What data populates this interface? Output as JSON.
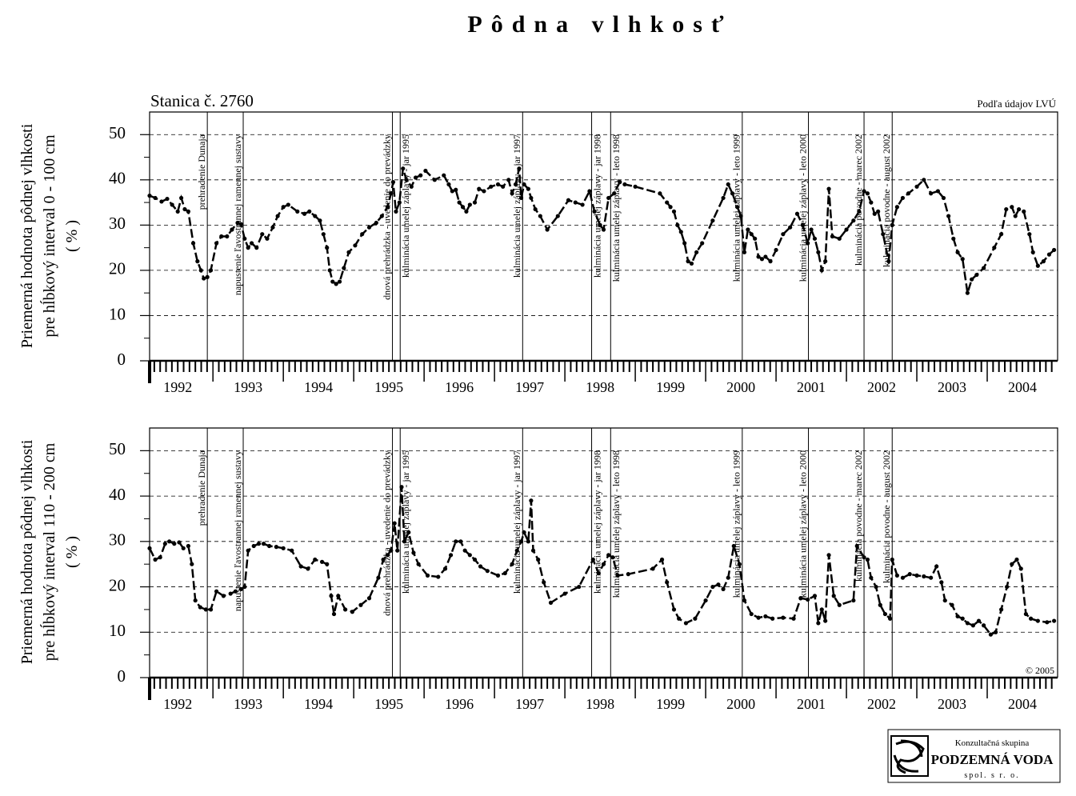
{
  "title": "Pôdna vlhkosť",
  "station": "Stanica č. 2760",
  "source": "Podľa údajov LVÚ",
  "copyright": "© 2005",
  "logo": {
    "line1": "Konzultačná skupina",
    "line2": "PODZEMNÁ VODA",
    "line3": "spol. s r. o."
  },
  "chart_data": [
    {
      "type": "line",
      "ylabel": [
        "Priemerná hodnota pôdnej vlhkosti",
        "pre hĺbkový interval 0 - 100 cm",
        "( % )"
      ],
      "xlim": [
        1992.1,
        2005
      ],
      "xticks": [
        1992,
        1993,
        1994,
        1995,
        1996,
        1997,
        1998,
        1999,
        2000,
        2001,
        2002,
        2003,
        2004
      ],
      "ylim": [
        0,
        55
      ],
      "yticks": [
        0,
        10,
        20,
        30,
        40,
        50
      ],
      "grid": true,
      "events": [
        {
          "x": 1992.92,
          "label": "prehradenie Dunaja"
        },
        {
          "x": 1993.43,
          "label": "napustenie ľavostrannej ramennej sustavy"
        },
        {
          "x": 1995.55,
          "label": "dnová prehrádzka - uvedenie do prevádzky"
        },
        {
          "x": 1995.66,
          "label": "kulminácia umelej záplavy - jar 1995"
        },
        {
          "x": 1997.4,
          "label": "kulminácia umelej záplavy - jar 1997"
        },
        {
          "x": 1998.38,
          "label": "kulminácia umelej záplavy - jar 1998"
        },
        {
          "x": 1998.65,
          "label": "kulminácia umelej záplavy - leto 1998"
        },
        {
          "x": 2000.52,
          "label": "kulminácia umelej záplavy - leto 1999"
        },
        {
          "x": 2001.46,
          "label": "kulminácia umelej záplavy - leto 2000"
        },
        {
          "x": 2002.25,
          "label": "kulminácia povodne - marec 2002"
        },
        {
          "x": 2002.65,
          "label": "kulminácia povodne - august 2002"
        }
      ],
      "series": [
        {
          "color": "#000000",
          "x": [
            1992.1,
            1992.18,
            1992.27,
            1992.35,
            1992.42,
            1992.5,
            1992.55,
            1992.6,
            1992.65,
            1992.72,
            1992.78,
            1992.83,
            1992.87,
            1992.92,
            1992.97,
            1993.05,
            1993.12,
            1993.2,
            1993.27,
            1993.35,
            1993.4,
            1993.45,
            1993.5,
            1993.55,
            1993.62,
            1993.7,
            1993.77,
            1993.85,
            1993.92,
            1994.0,
            1994.07,
            1994.2,
            1994.3,
            1994.37,
            1994.45,
            1994.52,
            1994.57,
            1994.62,
            1994.66,
            1994.7,
            1994.75,
            1994.8,
            1994.86,
            1994.93,
            1995.02,
            1995.12,
            1995.22,
            1995.32,
            1995.4,
            1995.48,
            1995.53,
            1995.56,
            1995.6,
            1995.65,
            1995.7,
            1995.75,
            1995.82,
            1995.88,
            1995.95,
            1996.02,
            1996.15,
            1996.28,
            1996.35,
            1996.4,
            1996.45,
            1996.5,
            1996.55,
            1996.6,
            1996.65,
            1996.72,
            1996.78,
            1996.85,
            1996.95,
            1997.05,
            1997.12,
            1997.2,
            1997.25,
            1997.3,
            1997.35,
            1997.38,
            1997.42,
            1997.48,
            1997.52,
            1997.58,
            1997.65,
            1997.75,
            1997.9,
            1998.05,
            1998.15,
            1998.25,
            1998.35,
            1998.42,
            1998.5,
            1998.55,
            1998.62,
            1998.7,
            1998.78,
            1998.85,
            1999.0,
            1999.35,
            1999.45,
            1999.5,
            1999.55,
            1999.6,
            1999.65,
            1999.7,
            1999.75,
            1999.8,
            1999.87,
            1999.95,
            2000.1,
            2000.25,
            2000.32,
            2000.38,
            2000.45,
            2000.5,
            2000.55,
            2000.6,
            2000.65,
            2000.7,
            2000.75,
            2000.8,
            2000.85,
            2000.92,
            2001.0,
            2001.1,
            2001.2,
            2001.3,
            2001.38,
            2001.45,
            2001.5,
            2001.55,
            2001.6,
            2001.65,
            2001.7,
            2001.75,
            2001.8,
            2001.9,
            2002.0,
            2002.1,
            2002.18,
            2002.25,
            2002.3,
            2002.35,
            2002.4,
            2002.45,
            2002.52,
            2002.6,
            2002.65,
            2002.72,
            2002.8,
            2002.88,
            2003.0,
            2003.1,
            2003.2,
            2003.3,
            2003.38,
            2003.45,
            2003.52,
            2003.58,
            2003.65,
            2003.72,
            2003.78,
            2003.85,
            2003.95,
            2004.1,
            2004.2,
            2004.27,
            2004.35,
            2004.4,
            2004.45,
            2004.52,
            2004.6,
            2004.65,
            2004.72,
            2004.8,
            2004.88,
            2004.95
          ],
          "values": [
            36.5,
            36,
            35.2,
            35.8,
            34.5,
            33,
            36,
            33.5,
            33,
            26,
            22,
            20,
            18.2,
            18.5,
            20,
            26,
            27.5,
            27.5,
            29,
            30.5,
            30.2,
            27,
            25,
            26,
            25,
            28,
            27,
            29.5,
            32,
            34,
            34.5,
            33,
            32.5,
            33,
            32,
            31,
            28,
            25,
            20,
            17.5,
            17,
            17.5,
            20.5,
            24,
            25.5,
            28,
            29.5,
            30.5,
            32,
            34,
            37,
            39.5,
            33,
            35,
            42.5,
            40,
            38.5,
            40.5,
            41,
            42,
            40,
            41,
            39,
            37.5,
            37.8,
            35,
            34,
            33,
            34.5,
            35,
            38,
            37.5,
            38.5,
            39,
            38.5,
            40,
            37,
            39,
            42.5,
            36,
            39,
            38,
            36,
            33.5,
            32,
            29,
            32,
            35.5,
            35,
            34.5,
            37.5,
            33,
            30,
            29,
            36,
            37,
            39.5,
            39,
            38.5,
            37,
            35,
            34,
            33,
            30,
            28.5,
            26,
            22,
            21.5,
            24,
            26,
            31,
            36,
            39,
            37,
            34,
            32,
            24,
            29,
            28,
            27,
            23,
            22.5,
            23,
            22,
            24.5,
            28,
            29.5,
            32.5,
            30,
            26,
            29,
            27,
            24,
            20,
            22,
            38,
            27.5,
            27,
            29,
            31,
            33,
            37.5,
            37,
            35,
            32.5,
            33,
            28,
            22,
            30,
            34,
            36,
            37,
            38.5,
            40,
            37,
            37.5,
            36,
            32,
            27,
            24,
            22.5,
            15,
            18,
            19,
            20.5,
            25,
            28,
            33.5,
            34,
            32,
            33.5,
            33,
            28,
            24,
            21,
            22,
            23.5,
            24.5
          ]
        }
      ]
    },
    {
      "type": "line",
      "ylabel": [
        "Priemerná hodnota pôdnej vlhkosti",
        "pre hĺbkový interval 110 - 200 cm",
        "( % )"
      ],
      "xlim": [
        1992.1,
        2005
      ],
      "xticks": [
        1992,
        1993,
        1994,
        1995,
        1996,
        1997,
        1998,
        1999,
        2000,
        2001,
        2002,
        2003,
        2004
      ],
      "ylim": [
        0,
        55
      ],
      "yticks": [
        0,
        10,
        20,
        30,
        40,
        50
      ],
      "grid": true,
      "events": [
        {
          "x": 1992.92,
          "label": "prehradenie Dunaja"
        },
        {
          "x": 1993.43,
          "label": "napustenie ľavostrannej ramennej sustavy"
        },
        {
          "x": 1995.55,
          "label": "dnová prehrádzka - uvedenie do prevádzky"
        },
        {
          "x": 1995.66,
          "label": "kulminácia umelej záplavy - jar 1995"
        },
        {
          "x": 1997.4,
          "label": "kulminácia umelej záplavy - jar 1997"
        },
        {
          "x": 1998.38,
          "label": "kulminácia umelej záplavy - jar 1998"
        },
        {
          "x": 1998.65,
          "label": "kulminácia umelej záplavy - leto 1998"
        },
        {
          "x": 2000.52,
          "label": "kulminácia umelej záplavy - leto 1999"
        },
        {
          "x": 2001.46,
          "label": "kulminácia umelej záplavy - leto 2000"
        },
        {
          "x": 2002.25,
          "label": "kulminácia povodne - marec 2002"
        },
        {
          "x": 2002.65,
          "label": "kulminácia povodne - august 2002"
        }
      ],
      "series": [
        {
          "color": "#000000",
          "x": [
            1992.1,
            1992.18,
            1992.25,
            1992.32,
            1992.38,
            1992.45,
            1992.52,
            1992.58,
            1992.65,
            1992.7,
            1992.75,
            1992.82,
            1992.9,
            1992.97,
            1993.05,
            1993.15,
            1993.25,
            1993.32,
            1993.4,
            1993.45,
            1993.5,
            1993.58,
            1993.65,
            1993.72,
            1993.8,
            1993.9,
            1994.0,
            1994.12,
            1994.25,
            1994.35,
            1994.45,
            1994.55,
            1994.62,
            1994.68,
            1994.72,
            1994.78,
            1994.88,
            1994.98,
            1995.1,
            1995.22,
            1995.35,
            1995.42,
            1995.48,
            1995.53,
            1995.58,
            1995.62,
            1995.68,
            1995.72,
            1995.78,
            1995.85,
            1995.92,
            1996.05,
            1996.2,
            1996.3,
            1996.38,
            1996.45,
            1996.52,
            1996.58,
            1996.65,
            1996.72,
            1996.8,
            1996.9,
            1997.05,
            1997.15,
            1997.25,
            1997.32,
            1997.38,
            1997.42,
            1997.48,
            1997.52,
            1997.55,
            1997.62,
            1997.7,
            1997.8,
            1998.0,
            1998.2,
            1998.4,
            1998.48,
            1998.55,
            1998.62,
            1998.68,
            1998.75,
            1998.9,
            1999.25,
            1999.38,
            1999.45,
            1999.55,
            1999.62,
            1999.72,
            1999.85,
            2000.0,
            2000.1,
            2000.18,
            2000.25,
            2000.32,
            2000.4,
            2000.48,
            2000.55,
            2000.65,
            2000.75,
            2000.85,
            2000.95,
            2001.1,
            2001.25,
            2001.35,
            2001.45,
            2001.55,
            2001.6,
            2001.65,
            2001.7,
            2001.75,
            2001.82,
            2001.9,
            2002.1,
            2002.15,
            2002.25,
            2002.3,
            2002.35,
            2002.42,
            2002.48,
            2002.55,
            2002.62,
            2002.65,
            2002.72,
            2002.8,
            2002.9,
            2003.0,
            2003.1,
            2003.2,
            2003.28,
            2003.35,
            2003.4,
            2003.5,
            2003.58,
            2003.65,
            2003.72,
            2003.8,
            2003.88,
            2003.95,
            2004.05,
            2004.12,
            2004.2,
            2004.28,
            2004.35,
            2004.42,
            2004.48,
            2004.55,
            2004.62,
            2004.72,
            2004.85,
            2004.95
          ],
          "values": [
            28.5,
            26,
            26.5,
            29.5,
            30,
            29.5,
            29.8,
            28.5,
            29,
            25,
            17,
            15.5,
            15,
            15,
            19,
            18,
            18.5,
            19,
            19.5,
            20,
            28,
            29,
            29.5,
            29.5,
            29,
            28.8,
            28.5,
            28,
            24.5,
            24,
            26,
            25.5,
            25,
            18,
            14,
            18,
            15,
            14.5,
            16,
            17.5,
            22,
            26,
            27,
            28,
            34,
            28,
            42,
            30,
            32,
            27.5,
            25,
            22.5,
            22.2,
            24,
            27,
            30,
            30,
            28,
            27,
            26,
            24.5,
            23.5,
            22.5,
            23,
            25,
            28,
            30,
            32,
            30,
            39,
            28,
            26,
            21,
            16.5,
            18.5,
            20,
            26,
            23,
            25,
            27,
            26.5,
            22.5,
            22.8,
            24,
            26,
            21,
            15,
            13,
            12,
            13,
            17,
            20,
            20.5,
            19.5,
            22,
            29,
            25,
            17,
            14,
            13.2,
            13.5,
            13,
            13.2,
            13,
            17.5,
            17.2,
            18,
            12,
            15,
            12.5,
            27,
            18,
            16,
            17,
            29,
            26.5,
            26,
            22,
            20,
            16,
            14,
            13,
            26,
            22.5,
            22,
            22.8,
            22.5,
            22.3,
            22,
            24.5,
            21,
            17,
            16,
            13.5,
            13,
            12,
            11.5,
            12.5,
            11.5,
            9.5,
            10,
            15,
            20,
            25,
            26,
            24,
            14,
            13,
            12.5,
            12.2,
            12.5
          ]
        }
      ]
    }
  ]
}
